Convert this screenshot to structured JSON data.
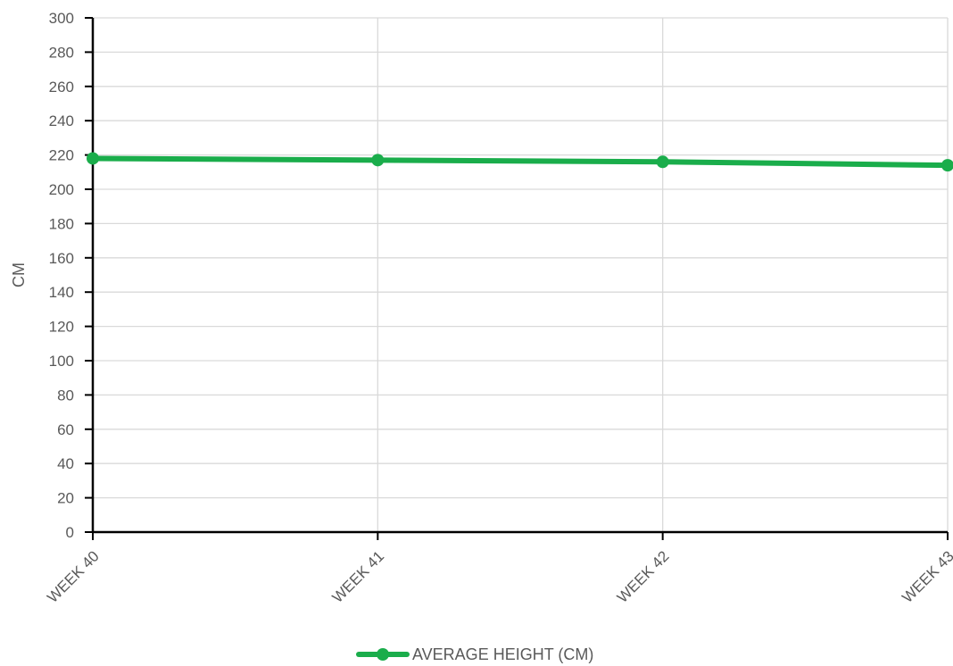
{
  "chart_data": {
    "type": "line",
    "categories": [
      "WEEK 40",
      "WEEK 41",
      "WEEK 42",
      "WEEK 43"
    ],
    "series": [
      {
        "name": "AVERAGE HEIGHT (CM)",
        "values": [
          218,
          217,
          216,
          214
        ],
        "color": "#1aad4b"
      }
    ],
    "ylabel": "CM",
    "ylim": [
      0,
      300
    ],
    "ytick_step": 20,
    "grid": true,
    "legend_position": "bottom"
  }
}
